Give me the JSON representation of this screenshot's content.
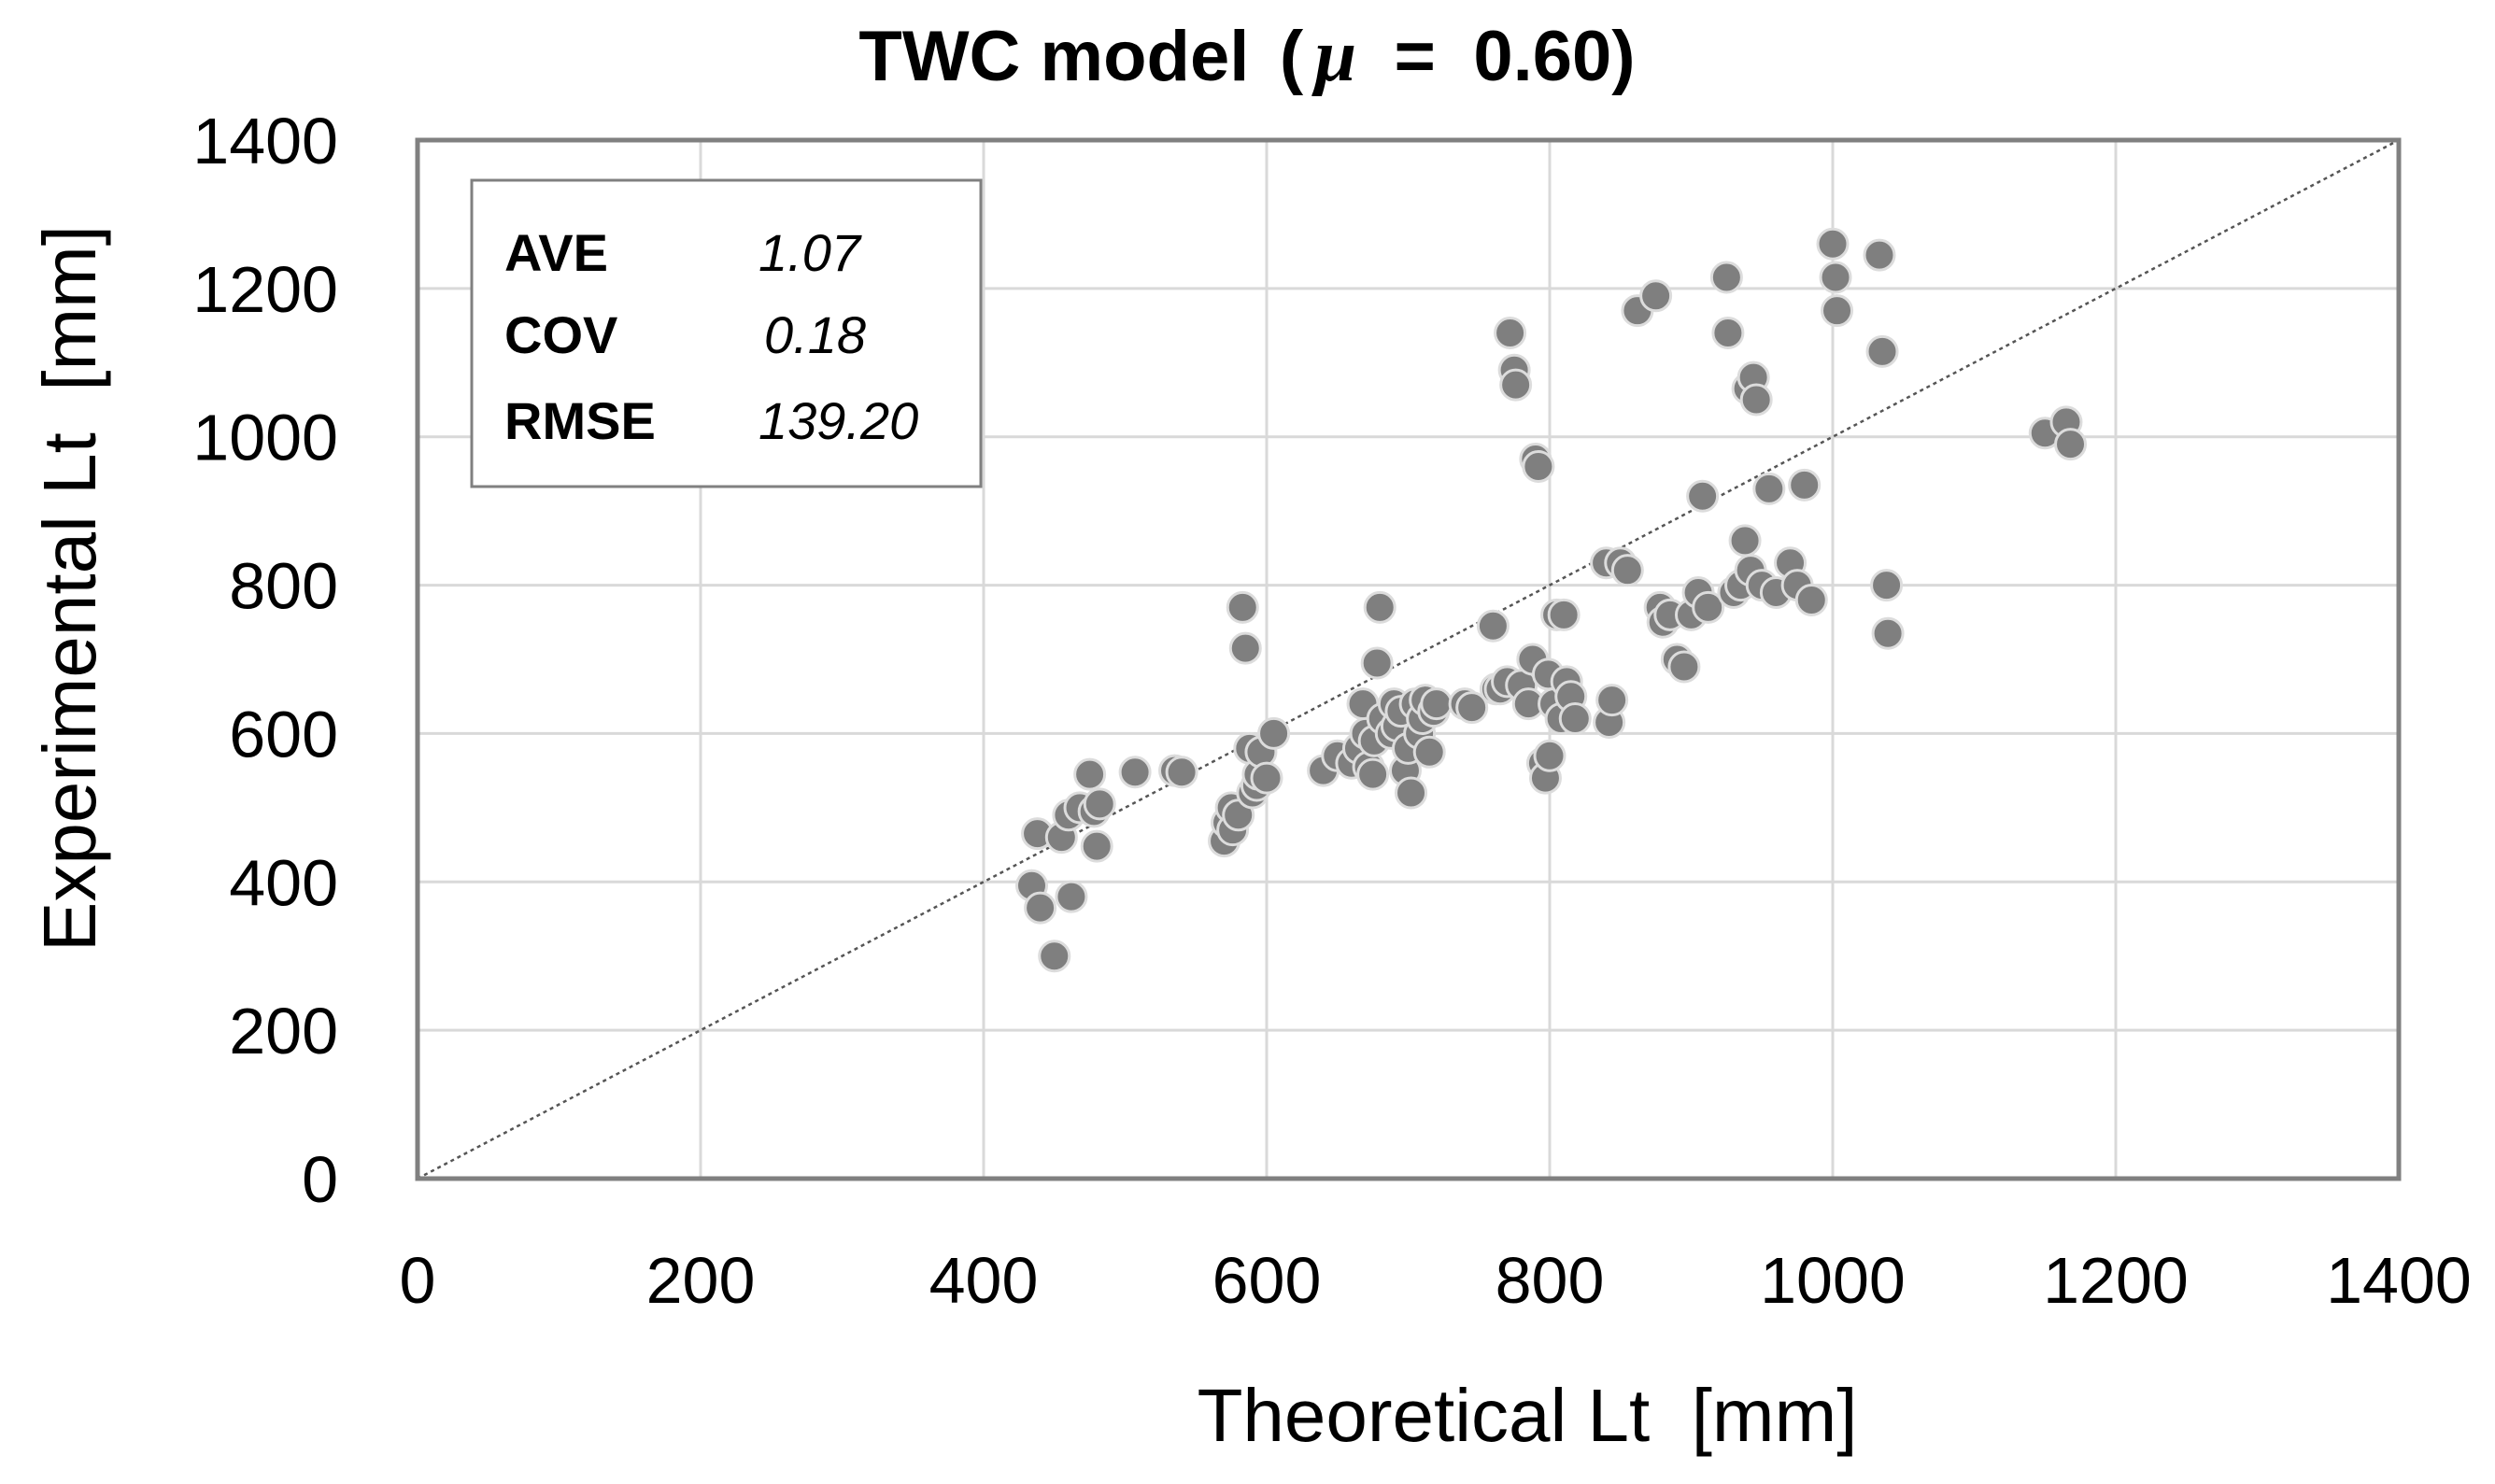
{
  "chart_data": {
    "type": "scatter",
    "title": {
      "main": "TWC model",
      "open": "(",
      "mu": "μ",
      "equals": "=",
      "value": "0.60)"
    },
    "xlabel": "Theoretical Lt  [mm]",
    "ylabel": "Experimental Lt  [mm]",
    "xlim": [
      0,
      1400
    ],
    "ylim": [
      0,
      1400
    ],
    "xticks": [
      0,
      200,
      400,
      600,
      800,
      1000,
      1200,
      1400
    ],
    "yticks": [
      0,
      200,
      400,
      600,
      800,
      1000,
      1200,
      1400
    ],
    "xtick_labels": [
      "0",
      "200",
      "400",
      "600",
      "800",
      "1000",
      "1200",
      "1400"
    ],
    "ytick_labels": [
      "0",
      "200",
      "400",
      "600",
      "800",
      "1000",
      "1200",
      "1400"
    ],
    "grid": true,
    "reference_line": {
      "from": [
        0,
        0
      ],
      "to": [
        1400,
        1400
      ]
    },
    "stats": [
      {
        "label": "AVE",
        "value": "1.07"
      },
      {
        "label": "COV",
        "value": "0.18"
      },
      {
        "label": "RMSE",
        "value": "139.20"
      }
    ],
    "stats_position": "top-left",
    "colors": {
      "marker_fill": "#7f7f7f",
      "marker_edge": "#dcdcdc",
      "grid": "#d9d9d9",
      "frame": "#808080"
    },
    "points": [
      [
        434,
        395
      ],
      [
        440,
        365
      ],
      [
        438,
        465
      ],
      [
        450,
        300
      ],
      [
        455,
        460
      ],
      [
        460,
        490
      ],
      [
        462,
        380
      ],
      [
        468,
        500
      ],
      [
        475,
        545
      ],
      [
        478,
        495
      ],
      [
        480,
        448
      ],
      [
        482,
        505
      ],
      [
        507,
        548
      ],
      [
        535,
        550
      ],
      [
        540,
        548
      ],
      [
        570,
        455
      ],
      [
        572,
        480
      ],
      [
        575,
        500
      ],
      [
        576,
        470
      ],
      [
        580,
        490
      ],
      [
        583,
        770
      ],
      [
        585,
        715
      ],
      [
        588,
        580
      ],
      [
        590,
        520
      ],
      [
        593,
        530
      ],
      [
        594,
        545
      ],
      [
        596,
        575
      ],
      [
        600,
        540
      ],
      [
        605,
        600
      ],
      [
        640,
        550
      ],
      [
        650,
        570
      ],
      [
        660,
        560
      ],
      [
        665,
        580
      ],
      [
        668,
        640
      ],
      [
        670,
        600
      ],
      [
        672,
        555
      ],
      [
        675,
        545
      ],
      [
        676,
        590
      ],
      [
        678,
        695
      ],
      [
        680,
        770
      ],
      [
        682,
        620
      ],
      [
        688,
        600
      ],
      [
        690,
        640
      ],
      [
        692,
        610
      ],
      [
        695,
        630
      ],
      [
        698,
        550
      ],
      [
        700,
        580
      ],
      [
        702,
        520
      ],
      [
        705,
        640
      ],
      [
        708,
        600
      ],
      [
        710,
        620
      ],
      [
        712,
        645
      ],
      [
        715,
        575
      ],
      [
        718,
        630
      ],
      [
        720,
        640
      ],
      [
        740,
        640
      ],
      [
        745,
        635
      ],
      [
        760,
        745
      ],
      [
        762,
        660
      ],
      [
        765,
        660
      ],
      [
        770,
        670
      ],
      [
        772,
        1140
      ],
      [
        775,
        1090
      ],
      [
        776,
        1070
      ],
      [
        780,
        665
      ],
      [
        785,
        640
      ],
      [
        788,
        700
      ],
      [
        790,
        970
      ],
      [
        792,
        960
      ],
      [
        795,
        560
      ],
      [
        797,
        540
      ],
      [
        799,
        680
      ],
      [
        800,
        570
      ],
      [
        803,
        640
      ],
      [
        805,
        760
      ],
      [
        808,
        620
      ],
      [
        810,
        760
      ],
      [
        812,
        670
      ],
      [
        815,
        650
      ],
      [
        818,
        620
      ],
      [
        840,
        830
      ],
      [
        842,
        615
      ],
      [
        844,
        645
      ],
      [
        850,
        830
      ],
      [
        855,
        820
      ],
      [
        862,
        1170
      ],
      [
        875,
        1190
      ],
      [
        878,
        770
      ],
      [
        880,
        750
      ],
      [
        885,
        760
      ],
      [
        890,
        700
      ],
      [
        895,
        690
      ],
      [
        900,
        760
      ],
      [
        905,
        790
      ],
      [
        908,
        920
      ],
      [
        912,
        770
      ],
      [
        925,
        1215
      ],
      [
        926,
        1140
      ],
      [
        930,
        790
      ],
      [
        935,
        800
      ],
      [
        938,
        860
      ],
      [
        940,
        1065
      ],
      [
        942,
        820
      ],
      [
        944,
        1080
      ],
      [
        946,
        1050
      ],
      [
        950,
        800
      ],
      [
        955,
        930
      ],
      [
        960,
        790
      ],
      [
        970,
        830
      ],
      [
        975,
        800
      ],
      [
        980,
        935
      ],
      [
        985,
        780
      ],
      [
        1000,
        1260
      ],
      [
        1002,
        1215
      ],
      [
        1003,
        1170
      ],
      [
        1033,
        1245
      ],
      [
        1035,
        1115
      ],
      [
        1038,
        800
      ],
      [
        1039,
        735
      ],
      [
        1150,
        1005
      ],
      [
        1165,
        1020
      ],
      [
        1168,
        990
      ]
    ]
  }
}
